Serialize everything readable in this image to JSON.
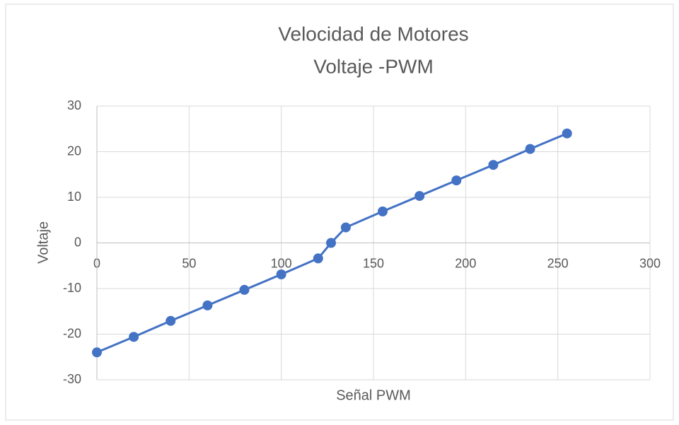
{
  "chart_data": {
    "type": "scatter-line",
    "title": [
      "Velocidad de Motores",
      "Voltaje -PWM"
    ],
    "x_label": "Señal PWM",
    "y_label": "Voltaje",
    "series": [
      {
        "name": "Voltaje",
        "color": "#4472c4",
        "x": [
          0,
          20,
          40,
          60,
          80,
          100,
          120,
          127,
          135,
          155,
          175,
          195,
          215,
          235,
          255
        ],
        "values": [
          -24,
          -20.6,
          -17.1,
          -13.7,
          -10.3,
          -6.9,
          -3.4,
          0,
          3.4,
          6.9,
          10.3,
          13.7,
          17.1,
          20.6,
          24
        ]
      }
    ],
    "xlim": [
      0,
      300
    ],
    "xticks": [
      0,
      50,
      100,
      150,
      200,
      250,
      300
    ],
    "ylim": [
      -30,
      30
    ],
    "yticks": [
      -30,
      -20,
      -10,
      0,
      10,
      20,
      30
    ],
    "grid": true
  }
}
